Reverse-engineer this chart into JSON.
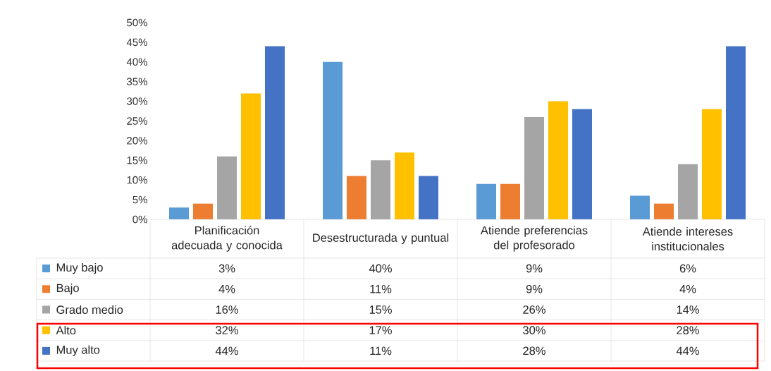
{
  "chart_data": {
    "type": "bar",
    "categories": [
      "Planificación adecuada y conocida",
      "Desestructurada y puntual",
      "Atiende preferencias del profesorado",
      "Atiende intereses institucionales"
    ],
    "series": [
      {
        "name": "Muy bajo",
        "color": "#5b9bd5",
        "values": [
          3,
          40,
          9,
          6
        ],
        "value_labels": [
          "3%",
          "40%",
          "9%",
          "6%"
        ]
      },
      {
        "name": "Bajo",
        "color": "#ed7d31",
        "values": [
          4,
          11,
          9,
          4
        ],
        "value_labels": [
          "4%",
          "11%",
          "9%",
          "4%"
        ]
      },
      {
        "name": "Grado medio",
        "color": "#a5a5a5",
        "values": [
          16,
          15,
          26,
          14
        ],
        "value_labels": [
          "16%",
          "15%",
          "26%",
          "14%"
        ]
      },
      {
        "name": "Alto",
        "color": "#ffc000",
        "values": [
          32,
          17,
          30,
          28
        ],
        "value_labels": [
          "32%",
          "17%",
          "30%",
          "28%"
        ]
      },
      {
        "name": "Muy alto",
        "color": "#4472c4",
        "values": [
          44,
          11,
          28,
          44
        ],
        "value_labels": [
          "44%",
          "11%",
          "28%",
          "44%"
        ]
      }
    ],
    "ylim": [
      0,
      50
    ],
    "yticks": [
      {
        "value": 0,
        "label": "0%"
      },
      {
        "value": 5,
        "label": "5%"
      },
      {
        "value": 10,
        "label": "10%"
      },
      {
        "value": 15,
        "label": "15%"
      },
      {
        "value": 20,
        "label": "20%"
      },
      {
        "value": 25,
        "label": "25%"
      },
      {
        "value": 30,
        "label": "30%"
      },
      {
        "value": 35,
        "label": "35%"
      },
      {
        "value": 40,
        "label": "40%"
      },
      {
        "value": 45,
        "label": "45%"
      },
      {
        "value": 50,
        "label": "50%"
      }
    ],
    "legend": "bottom",
    "grid": false
  }
}
